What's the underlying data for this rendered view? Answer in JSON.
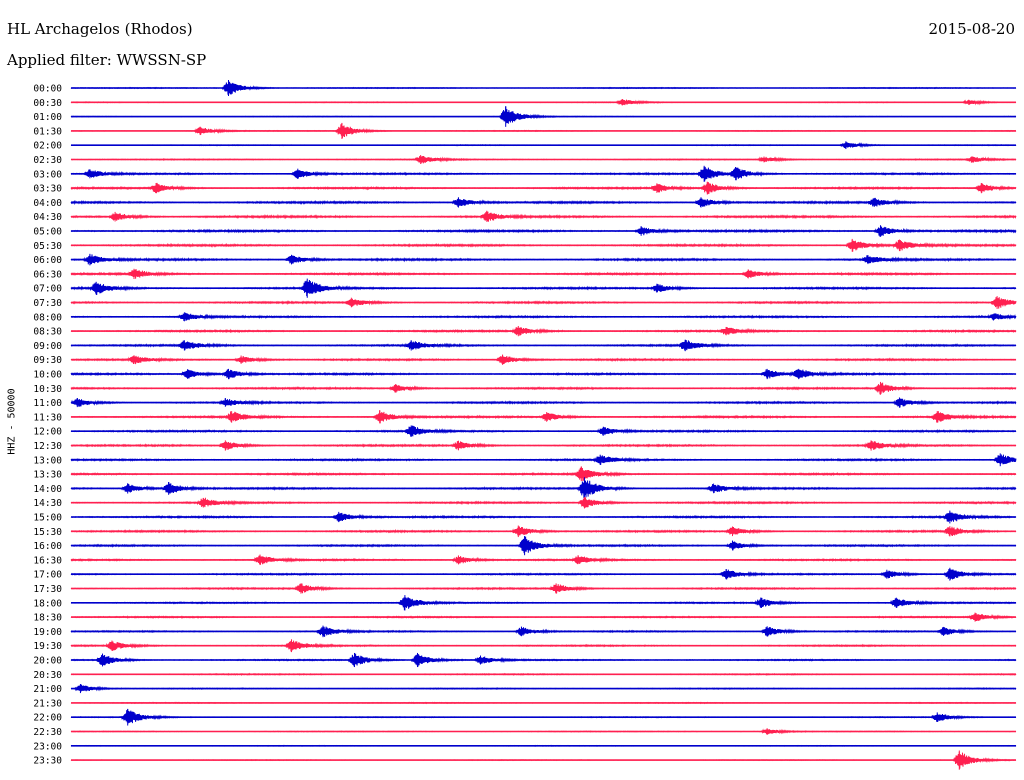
{
  "header": {
    "station": "HL Archagelos (Rhodos)",
    "date": "2015-08-20",
    "filter": "Applied filter: WWSSN-SP",
    "channel": "HHZ - 50000"
  },
  "colors": {
    "even_rows": "#0000cc",
    "odd_rows": "#ff2050",
    "background": "#ffffff"
  },
  "chart_data": {
    "type": "line",
    "title": "HL Archagelos (Rhodos)",
    "subtitle": "Applied filter: WWSSN-SP",
    "date": "2015-08-20",
    "ylabel": "HHZ - 50000",
    "rows": [
      "00:00",
      "00:30",
      "01:00",
      "01:30",
      "02:00",
      "02:30",
      "03:00",
      "03:30",
      "04:00",
      "04:30",
      "05:00",
      "05:30",
      "06:00",
      "06:30",
      "07:00",
      "07:30",
      "08:00",
      "08:30",
      "09:00",
      "09:30",
      "10:00",
      "10:30",
      "11:00",
      "11:30",
      "12:00",
      "12:30",
      "13:00",
      "13:30",
      "14:00",
      "14:30",
      "15:00",
      "15:30",
      "16:00",
      "16:30",
      "17:00",
      "17:30",
      "18:00",
      "18:30",
      "19:00",
      "19:30",
      "20:00",
      "20:30",
      "21:00",
      "21:30",
      "22:00",
      "22:30",
      "23:00",
      "23:30"
    ],
    "row_minutes": 30,
    "noise_level": [
      0.4,
      0.35,
      0.3,
      0.35,
      0.35,
      0.45,
      0.7,
      0.75,
      0.85,
      0.9,
      0.9,
      0.85,
      0.85,
      0.8,
      0.8,
      0.75,
      0.75,
      0.75,
      0.75,
      0.75,
      0.75,
      0.75,
      0.75,
      0.8,
      0.75,
      0.75,
      0.75,
      0.75,
      0.75,
      0.75,
      0.75,
      0.75,
      0.7,
      0.7,
      0.65,
      0.65,
      0.6,
      0.6,
      0.6,
      0.6,
      0.55,
      0.5,
      0.45,
      0.4,
      0.4,
      0.35,
      0.3,
      0.3
    ],
    "events": [
      {
        "row": 0,
        "minute": 5.0,
        "amp": 2.5
      },
      {
        "row": 1,
        "minute": 17.5,
        "amp": 1.0
      },
      {
        "row": 1,
        "minute": 28.5,
        "amp": 0.8
      },
      {
        "row": 2,
        "minute": 13.8,
        "amp": 3.2
      },
      {
        "row": 3,
        "minute": 4.1,
        "amp": 1.3
      },
      {
        "row": 3,
        "minute": 8.6,
        "amp": 2.5
      },
      {
        "row": 4,
        "minute": 24.6,
        "amp": 1.2
      },
      {
        "row": 5,
        "minute": 11.1,
        "amp": 1.4
      },
      {
        "row": 5,
        "minute": 22.0,
        "amp": 0.9
      },
      {
        "row": 5,
        "minute": 28.6,
        "amp": 1.0
      },
      {
        "row": 6,
        "minute": 0.6,
        "amp": 1.4
      },
      {
        "row": 6,
        "minute": 7.2,
        "amp": 1.6
      },
      {
        "row": 6,
        "minute": 20.1,
        "amp": 2.5
      },
      {
        "row": 6,
        "minute": 21.1,
        "amp": 2.0
      },
      {
        "row": 7,
        "minute": 2.7,
        "amp": 1.6
      },
      {
        "row": 7,
        "minute": 18.6,
        "amp": 1.5
      },
      {
        "row": 7,
        "minute": 20.2,
        "amp": 2.0
      },
      {
        "row": 7,
        "minute": 28.9,
        "amp": 1.6
      },
      {
        "row": 8,
        "minute": 12.3,
        "amp": 1.6
      },
      {
        "row": 8,
        "minute": 20.0,
        "amp": 1.6
      },
      {
        "row": 8,
        "minute": 25.5,
        "amp": 1.4
      },
      {
        "row": 9,
        "minute": 1.4,
        "amp": 1.5
      },
      {
        "row": 9,
        "minute": 13.2,
        "amp": 1.6
      },
      {
        "row": 10,
        "minute": 18.1,
        "amp": 1.5
      },
      {
        "row": 10,
        "minute": 25.7,
        "amp": 1.8
      },
      {
        "row": 11,
        "minute": 24.8,
        "amp": 2.0
      },
      {
        "row": 11,
        "minute": 26.3,
        "amp": 1.8
      },
      {
        "row": 12,
        "minute": 0.6,
        "amp": 1.8
      },
      {
        "row": 12,
        "minute": 7.0,
        "amp": 1.5
      },
      {
        "row": 12,
        "minute": 25.3,
        "amp": 1.4
      },
      {
        "row": 13,
        "minute": 2.0,
        "amp": 1.6
      },
      {
        "row": 13,
        "minute": 21.5,
        "amp": 1.4
      },
      {
        "row": 14,
        "minute": 0.8,
        "amp": 2.0
      },
      {
        "row": 14,
        "minute": 7.5,
        "amp": 3.0
      },
      {
        "row": 14,
        "minute": 18.6,
        "amp": 1.4
      },
      {
        "row": 15,
        "minute": 8.9,
        "amp": 1.5
      },
      {
        "row": 15,
        "minute": 29.4,
        "amp": 2.0
      },
      {
        "row": 16,
        "minute": 3.6,
        "amp": 1.4
      },
      {
        "row": 16,
        "minute": 29.3,
        "amp": 1.0
      },
      {
        "row": 17,
        "minute": 14.2,
        "amp": 1.6
      },
      {
        "row": 17,
        "minute": 20.8,
        "amp": 1.3
      },
      {
        "row": 18,
        "minute": 3.6,
        "amp": 1.6
      },
      {
        "row": 18,
        "minute": 10.8,
        "amp": 1.6
      },
      {
        "row": 18,
        "minute": 19.5,
        "amp": 1.8
      },
      {
        "row": 19,
        "minute": 2.0,
        "amp": 1.3
      },
      {
        "row": 19,
        "minute": 5.4,
        "amp": 1.3
      },
      {
        "row": 19,
        "minute": 13.7,
        "amp": 1.6
      },
      {
        "row": 20,
        "minute": 3.7,
        "amp": 1.5
      },
      {
        "row": 20,
        "minute": 5.0,
        "amp": 1.6
      },
      {
        "row": 20,
        "minute": 22.1,
        "amp": 1.6
      },
      {
        "row": 20,
        "minute": 23.1,
        "amp": 1.6
      },
      {
        "row": 21,
        "minute": 10.3,
        "amp": 1.3
      },
      {
        "row": 21,
        "minute": 25.7,
        "amp": 2.0
      },
      {
        "row": 22,
        "minute": 0.2,
        "amp": 1.4
      },
      {
        "row": 22,
        "minute": 4.9,
        "amp": 1.3
      },
      {
        "row": 22,
        "minute": 26.3,
        "amp": 1.6
      },
      {
        "row": 23,
        "minute": 5.1,
        "amp": 1.8
      },
      {
        "row": 23,
        "minute": 9.8,
        "amp": 2.0
      },
      {
        "row": 23,
        "minute": 15.1,
        "amp": 1.5
      },
      {
        "row": 23,
        "minute": 27.5,
        "amp": 1.8
      },
      {
        "row": 24,
        "minute": 10.8,
        "amp": 1.8
      },
      {
        "row": 24,
        "minute": 16.9,
        "amp": 1.4
      },
      {
        "row": 25,
        "minute": 4.9,
        "amp": 1.6
      },
      {
        "row": 25,
        "minute": 12.3,
        "amp": 1.5
      },
      {
        "row": 25,
        "minute": 25.4,
        "amp": 1.6
      },
      {
        "row": 26,
        "minute": 16.8,
        "amp": 1.6
      },
      {
        "row": 26,
        "minute": 29.5,
        "amp": 2.0
      },
      {
        "row": 27,
        "minute": 16.2,
        "amp": 2.2
      },
      {
        "row": 28,
        "minute": 1.8,
        "amp": 1.6
      },
      {
        "row": 28,
        "minute": 3.1,
        "amp": 2.0
      },
      {
        "row": 28,
        "minute": 16.3,
        "amp": 3.5
      },
      {
        "row": 28,
        "minute": 20.4,
        "amp": 1.5
      },
      {
        "row": 29,
        "minute": 4.2,
        "amp": 1.5
      },
      {
        "row": 29,
        "minute": 16.3,
        "amp": 1.8
      },
      {
        "row": 30,
        "minute": 8.5,
        "amp": 1.6
      },
      {
        "row": 30,
        "minute": 27.9,
        "amp": 2.0
      },
      {
        "row": 31,
        "minute": 14.2,
        "amp": 1.8
      },
      {
        "row": 31,
        "minute": 21.0,
        "amp": 1.5
      },
      {
        "row": 31,
        "minute": 27.9,
        "amp": 1.6
      },
      {
        "row": 32,
        "minute": 14.4,
        "amp": 3.0
      },
      {
        "row": 32,
        "minute": 21.0,
        "amp": 1.5
      },
      {
        "row": 33,
        "minute": 6.0,
        "amp": 1.6
      },
      {
        "row": 33,
        "minute": 12.3,
        "amp": 1.4
      },
      {
        "row": 33,
        "minute": 16.1,
        "amp": 1.3
      },
      {
        "row": 34,
        "minute": 20.8,
        "amp": 1.6
      },
      {
        "row": 34,
        "minute": 25.9,
        "amp": 1.4
      },
      {
        "row": 34,
        "minute": 27.9,
        "amp": 2.0
      },
      {
        "row": 35,
        "minute": 7.3,
        "amp": 1.6
      },
      {
        "row": 35,
        "minute": 15.4,
        "amp": 1.6
      },
      {
        "row": 36,
        "minute": 10.6,
        "amp": 2.4
      },
      {
        "row": 36,
        "minute": 21.9,
        "amp": 1.6
      },
      {
        "row": 36,
        "minute": 26.2,
        "amp": 1.6
      },
      {
        "row": 37,
        "minute": 28.7,
        "amp": 1.4
      },
      {
        "row": 38,
        "minute": 8.0,
        "amp": 1.8
      },
      {
        "row": 38,
        "minute": 14.3,
        "amp": 1.5
      },
      {
        "row": 38,
        "minute": 22.1,
        "amp": 1.6
      },
      {
        "row": 38,
        "minute": 27.7,
        "amp": 1.4
      },
      {
        "row": 39,
        "minute": 1.3,
        "amp": 1.6
      },
      {
        "row": 39,
        "minute": 7.0,
        "amp": 2.0
      },
      {
        "row": 40,
        "minute": 1.0,
        "amp": 2.0
      },
      {
        "row": 40,
        "minute": 9.0,
        "amp": 2.2
      },
      {
        "row": 40,
        "minute": 11.0,
        "amp": 2.2
      },
      {
        "row": 40,
        "minute": 13.0,
        "amp": 1.4
      },
      {
        "row": 42,
        "minute": 0.3,
        "amp": 1.4
      },
      {
        "row": 44,
        "minute": 1.8,
        "amp": 2.6
      },
      {
        "row": 44,
        "minute": 27.5,
        "amp": 1.5
      },
      {
        "row": 45,
        "minute": 22.1,
        "amp": 1.0
      },
      {
        "row": 47,
        "minute": 28.2,
        "amp": 3.0
      }
    ]
  }
}
